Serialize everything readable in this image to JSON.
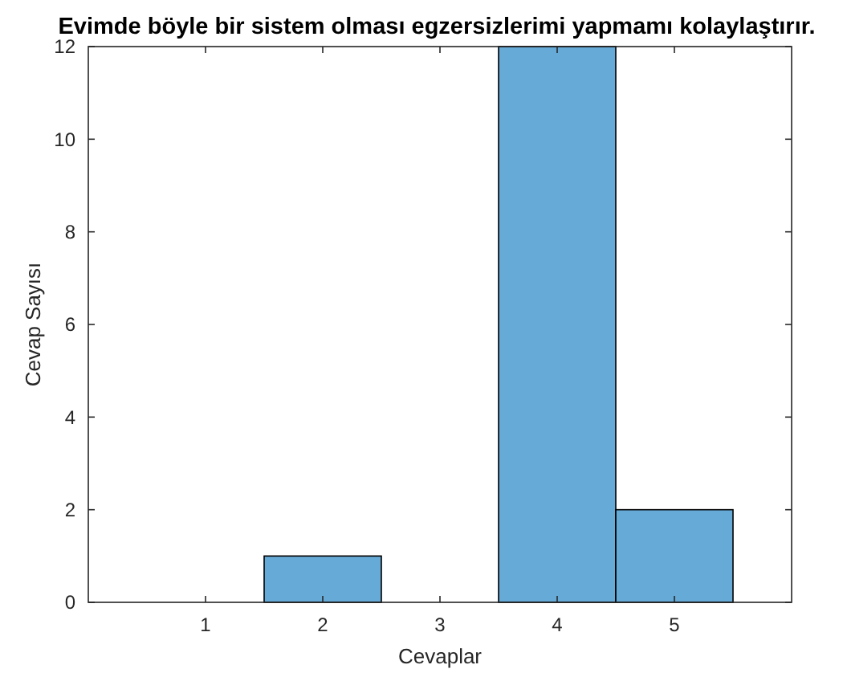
{
  "chart_data": {
    "type": "histogram",
    "title": "Evimde böyle bir sistem olması egzersizlerimi yapmamı kolaylaştırır.",
    "xlabel": "Cevaplar",
    "ylabel": "Cevap Sayısı",
    "bins": [
      0.5,
      1.5,
      2.5,
      3.5,
      4.5,
      5.5
    ],
    "values": [
      0,
      1,
      0,
      12,
      2
    ],
    "color": "#66aad7",
    "xlim": [
      0,
      6
    ],
    "xticks": [
      1,
      2,
      3,
      4,
      5
    ],
    "ylim": [
      0,
      12
    ],
    "yticks": [
      0,
      2,
      4,
      6,
      8,
      10,
      12
    ],
    "grid": false
  }
}
